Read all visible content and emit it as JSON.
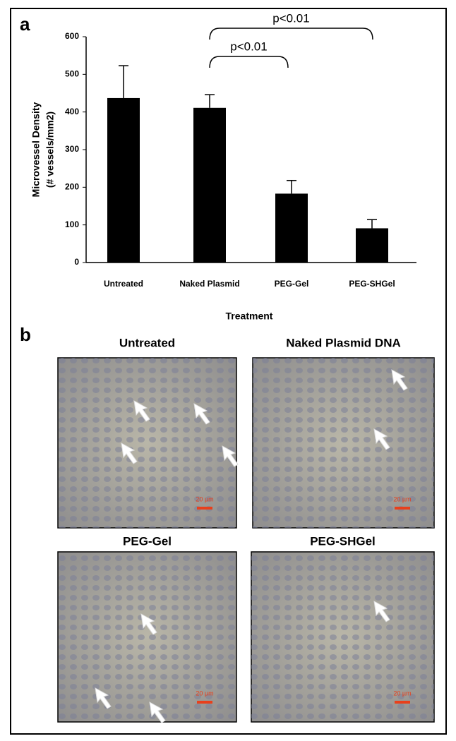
{
  "panel_labels": [
    "a",
    "b"
  ],
  "chart_data": {
    "type": "bar",
    "ylabel": [
      "Microvessel Density",
      "(# vessels/mm2)"
    ],
    "xlabel": "Treatment",
    "categories": [
      "Untreated",
      "Naked Plasmid",
      "PEG-Gel",
      "PEG-SHGel"
    ],
    "values": [
      437,
      411,
      183,
      91
    ],
    "errors": [
      86,
      35,
      35,
      23
    ],
    "color": "#000000",
    "ylim": [
      0,
      600
    ],
    "yticks": [
      0,
      100,
      200,
      300,
      400,
      500,
      600
    ],
    "annotations": [
      "p<0.01",
      "p<0.01"
    ]
  },
  "micrographs": [
    {
      "title": "Untreated",
      "scale_label": "20 µm"
    },
    {
      "title": "Naked Plasmid DNA",
      "scale_label": "20 µm"
    },
    {
      "title": "PEG-Gel",
      "scale_label": "20 µm"
    },
    {
      "title": "PEG-SHGel",
      "scale_label": "20 µm"
    }
  ]
}
